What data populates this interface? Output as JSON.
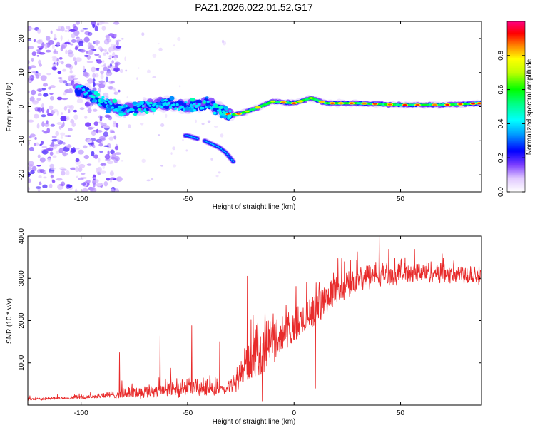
{
  "title": "PAZ1.2026.022.01.52.G17",
  "chart_data": [
    {
      "type": "heatmap",
      "name": "spectrogram",
      "xlabel": "Height of straight line (km)",
      "ylabel": "Frequency (Hz)",
      "xlim": [
        -125,
        88
      ],
      "ylim": [
        -25,
        25
      ],
      "xticks": [
        -100,
        -50,
        0,
        50
      ],
      "xtick_labels": [
        "-100",
        "-50",
        "0",
        "50"
      ],
      "yticks": [
        -20,
        -10,
        0,
        10,
        20
      ],
      "ytick_labels": [
        "-20",
        "-10",
        "0",
        "10",
        "20"
      ],
      "colorbar": {
        "label": "Normalized spectral amplitude",
        "range": [
          0,
          1
        ],
        "ticks": [
          0.0,
          0.2,
          0.4,
          0.6,
          0.8
        ],
        "tick_labels": [
          "0.0",
          "0.2",
          "0.4",
          "0.6",
          "0.8"
        ],
        "colormap": "rainbow-violet-to-magenta"
      },
      "features": [
        {
          "description": "main signal track",
          "x": [
            -100,
            -90,
            -80,
            -70,
            -60,
            -50,
            -40,
            -30,
            -25,
            -20,
            -10,
            0,
            8,
            15,
            30,
            50,
            70,
            88
          ],
          "y": [
            5,
            1,
            -1,
            0,
            1,
            0,
            1,
            -2.5,
            -2,
            -1,
            1.5,
            1,
            2.5,
            1,
            1,
            0.5,
            0.5,
            1
          ]
        },
        {
          "description": "secondary descending branch",
          "x": [
            -50,
            -42,
            -35,
            -32,
            -28
          ],
          "y": [
            -8.5,
            -10,
            -12,
            -13.5,
            -16.5
          ]
        },
        {
          "description": "noise region",
          "x_range": [
            -125,
            -90
          ],
          "y_range": [
            -25,
            25
          ]
        }
      ]
    },
    {
      "type": "line",
      "name": "snr",
      "xlabel": "Height of straight line (km)",
      "ylabel": "SNR (10 * v/v)",
      "xlim": [
        -125,
        88
      ],
      "ylim": [
        0,
        4000
      ],
      "xticks": [
        -100,
        -50,
        0,
        50
      ],
      "xtick_labels": [
        "-100",
        "-50",
        "0",
        "50"
      ],
      "yticks": [
        1000,
        2000,
        3000,
        4000
      ],
      "ytick_labels": [
        "1000",
        "2000",
        "3000",
        "4000"
      ],
      "color": "#e82b2b",
      "envelope": {
        "x": [
          -125,
          -110,
          -100,
          -90,
          -80,
          -70,
          -60,
          -50,
          -40,
          -32,
          -28,
          -22,
          -15,
          -10,
          -5,
          0,
          5,
          10,
          15,
          20,
          30,
          40,
          50,
          60,
          70,
          80,
          88
        ],
        "base": [
          130,
          150,
          170,
          200,
          230,
          260,
          300,
          330,
          330,
          320,
          450,
          800,
          1100,
          1400,
          1500,
          1650,
          1900,
          2150,
          2400,
          2600,
          2850,
          3000,
          3050,
          3050,
          3050,
          3000,
          3000
        ],
        "amplitude": [
          60,
          60,
          90,
          120,
          200,
          280,
          350,
          380,
          350,
          200,
          400,
          900,
          1000,
          1000,
          800,
          700,
          700,
          800,
          700,
          600,
          500,
          500,
          500,
          450,
          450,
          450,
          450
        ]
      },
      "notable_points": [
        {
          "x": -82,
          "y": 1240
        },
        {
          "x": -63,
          "y": 1640
        },
        {
          "x": -48,
          "y": 1880
        },
        {
          "x": -35,
          "y": 1500
        },
        {
          "x": -22,
          "y": 3050
        },
        {
          "x": -15,
          "y": 100
        },
        {
          "x": 10,
          "y": 400
        },
        {
          "x": 40,
          "y": 4000
        }
      ]
    }
  ]
}
